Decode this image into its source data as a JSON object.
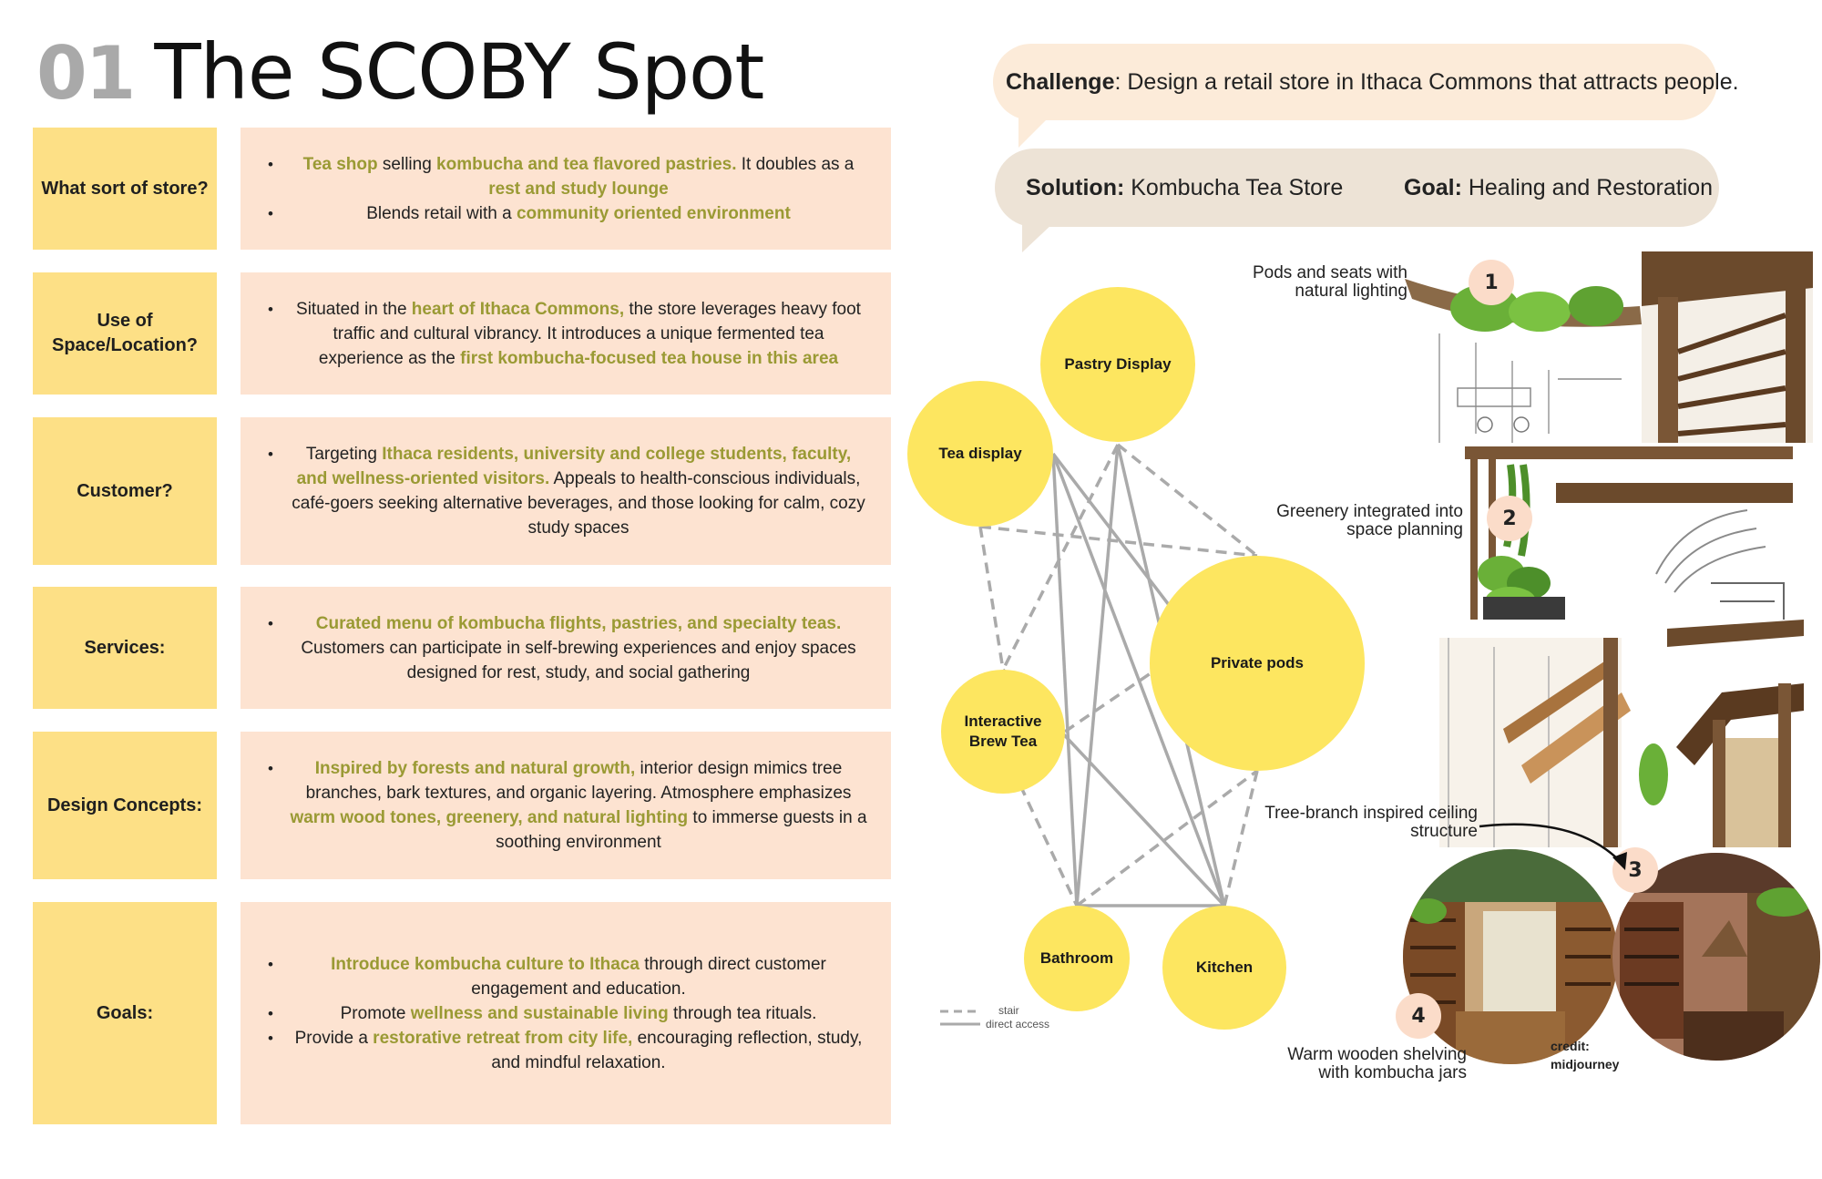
{
  "header": {
    "number": "01",
    "title": "The SCOBY Spot"
  },
  "rows": [
    {
      "label": "What sort of store?",
      "bullets": [
        [
          {
            "t": "Tea shop",
            "h": true
          },
          {
            "t": " selling "
          },
          {
            "t": "kombucha and tea flavored pastries.",
            "h": true
          },
          {
            "t": " It doubles as a "
          },
          {
            "t": "rest and study lounge",
            "h": true
          }
        ],
        [
          {
            "t": "Blends retail with a "
          },
          {
            "t": "community oriented environment",
            "h": true
          }
        ]
      ]
    },
    {
      "label": "Use of Space/Location?",
      "bullets": [
        [
          {
            "t": "Situated in the "
          },
          {
            "t": "heart of Ithaca Commons,",
            "h": true
          },
          {
            "t": " the store leverages heavy foot traffic and cultural vibrancy. It introduces a unique fermented tea experience as the "
          },
          {
            "t": "first kombucha-focused tea house in this area",
            "h": true
          }
        ]
      ]
    },
    {
      "label": "Customer?",
      "bullets": [
        [
          {
            "t": "Targeting "
          },
          {
            "t": "Ithaca residents, university and college students, faculty, and wellness-oriented visitors.",
            "h": true
          },
          {
            "t": " Appeals to health-conscious individuals, café-goers seeking alternative beverages, and those looking for calm, cozy study spaces"
          }
        ]
      ]
    },
    {
      "label": "Services:",
      "bullets": [
        [
          {
            "t": "Curated menu of kombucha flights, pastries, and specialty teas.",
            "h": true
          },
          {
            "t": " Customers can participate in self-brewing experiences and enjoy spaces designed for rest, study, and social gathering"
          }
        ]
      ]
    },
    {
      "label": "Design Concepts:",
      "bullets": [
        [
          {
            "t": "Inspired by forests and natural growth,",
            "h": true
          },
          {
            "t": " interior design mimics tree branches, bark textures, and organic layering. Atmosphere emphasizes "
          },
          {
            "t": "warm wood tones, greenery, and natural lighting",
            "h": true
          },
          {
            "t": " to immerse guests in a soothing environment"
          }
        ]
      ]
    },
    {
      "label": "Goals:",
      "bullets": [
        [
          {
            "t": "Introduce kombucha culture to Ithaca",
            "h": true
          },
          {
            "t": " through direct customer engagement and education."
          }
        ],
        [
          {
            "t": "Promote "
          },
          {
            "t": "wellness and sustainable living",
            "h": true
          },
          {
            "t": " through tea rituals."
          }
        ],
        [
          {
            "t": "Provide a "
          },
          {
            "t": "restorative retreat from city life,",
            "h": true
          },
          {
            "t": " encouraging reflection, study, and mindful relaxation."
          }
        ]
      ]
    }
  ],
  "challenge": {
    "label": "Challenge",
    "text": ": Design a retail store in Ithaca Commons that attracts people."
  },
  "solution": {
    "label": "Solution:",
    "text": " Kombucha Tea Store"
  },
  "goal": {
    "label": "Goal:",
    "text": " Healing and Restoration"
  },
  "diagram": {
    "nodes": [
      {
        "id": "pastry",
        "label": "Pastry Display"
      },
      {
        "id": "tea",
        "label": "Tea display"
      },
      {
        "id": "pods",
        "label": "Private pods"
      },
      {
        "id": "brew",
        "label": "Interactive Brew Tea"
      },
      {
        "id": "bath",
        "label": "Bathroom"
      },
      {
        "id": "kitchen",
        "label": "Kitchen"
      }
    ],
    "connections_stair": [
      [
        "tea",
        "pods"
      ],
      [
        "pastry",
        "pods"
      ],
      [
        "pastry",
        "brew"
      ],
      [
        "tea",
        "brew"
      ],
      [
        "brew",
        "pods"
      ],
      [
        "brew",
        "bath"
      ],
      [
        "bath",
        "pods"
      ],
      [
        "pods",
        "kitchen"
      ]
    ],
    "connections_direct": [
      [
        "tea",
        "bath"
      ],
      [
        "tea",
        "kitchen"
      ],
      [
        "tea",
        "pods"
      ],
      [
        "pastry",
        "bath"
      ],
      [
        "pastry",
        "kitchen"
      ],
      [
        "brew",
        "kitchen"
      ],
      [
        "bath",
        "kitchen"
      ]
    ],
    "legend": {
      "stair": "stair",
      "direct": "direct access"
    },
    "colors": {
      "node": "#fde660",
      "line": "#aaaaaa"
    }
  },
  "captions": {
    "c1": "Pods and seats with natural lighting",
    "c2": "Greenery integrated into space planning",
    "c3": "Tree-branch inspired ceiling structure",
    "c4": "Warm wooden shelving with kombucha jars",
    "credit": "credit: midjourney"
  },
  "badges": [
    "1",
    "2",
    "3",
    "4"
  ],
  "colors": {
    "label_bg": "#fde086",
    "desc_bg": "#fde3d1",
    "highlight": "#9a9a34",
    "challenge_bg": "#fcebd9",
    "solution_bg": "#ede3d6"
  }
}
